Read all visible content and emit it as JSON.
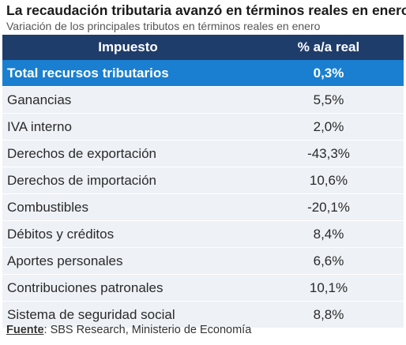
{
  "title": "La recaudación tributaria avanzó en términos reales en enero",
  "subtitle": "Variación de los principales tributos en términos reales en enero",
  "table": {
    "headers": {
      "impuesto": "Impuesto",
      "variacion": "% a/a real"
    },
    "total": {
      "impuesto": "Total recursos tributarios",
      "variacion": "0,3%"
    },
    "rows": [
      {
        "impuesto": "Ganancias",
        "variacion": "5,5%"
      },
      {
        "impuesto": "IVA interno",
        "variacion": "2,0%"
      },
      {
        "impuesto": "Derechos de exportación",
        "variacion": "-43,3%"
      },
      {
        "impuesto": "Derechos de importación",
        "variacion": "10,6%"
      },
      {
        "impuesto": "Combustibles",
        "variacion": "-20,1%"
      },
      {
        "impuesto": "Débitos y créditos",
        "variacion": "8,4%"
      },
      {
        "impuesto": "Aportes personales",
        "variacion": "6,6%"
      },
      {
        "impuesto": "Contribuciones patronales",
        "variacion": "10,1%"
      },
      {
        "impuesto": "Sistema de seguridad social",
        "variacion": "8,8%"
      }
    ]
  },
  "source": {
    "label": "Fuente",
    "separator": ":",
    "text": " SBS Research, Ministerio de Economía"
  },
  "colors": {
    "header_bg": "#1f3d6b",
    "total_bg": "#1a7fd0",
    "row_bg": "#eef1f5"
  }
}
